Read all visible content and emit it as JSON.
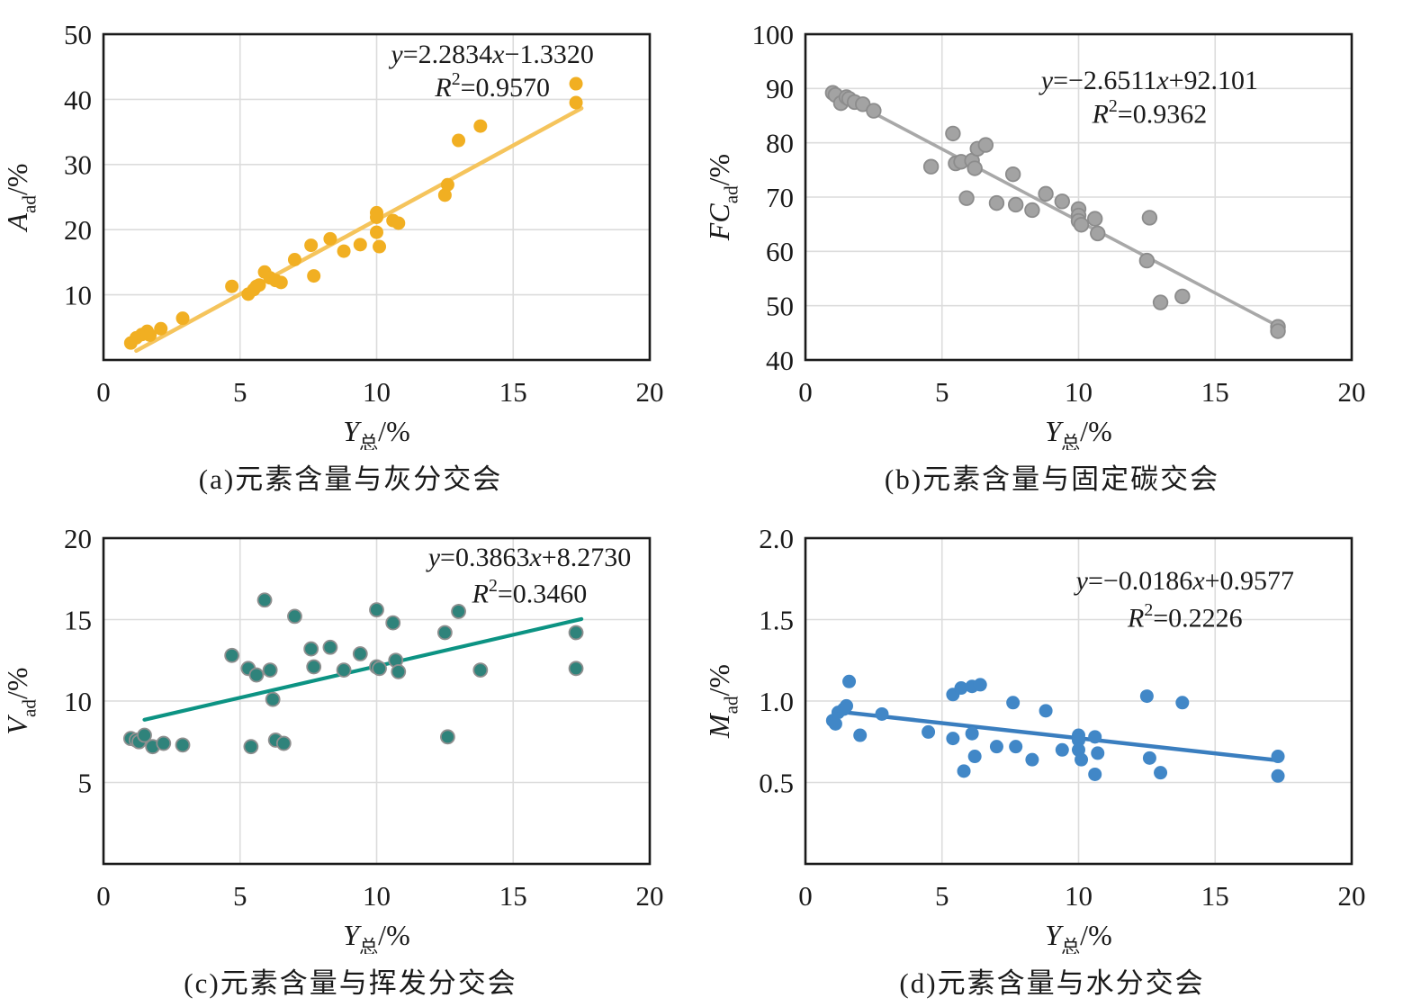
{
  "figure_name": "coal-quality-crossplots",
  "chart_data": [
    {
      "type": "scatter",
      "panel": "a",
      "caption": "(a)元素含量与灰分交会",
      "xlim": [
        0,
        20
      ],
      "ylim": [
        0,
        50
      ],
      "xticks": [
        [
          0,
          "0"
        ],
        [
          5,
          "5"
        ],
        [
          10,
          "10"
        ],
        [
          15,
          "15"
        ],
        [
          20,
          "20"
        ]
      ],
      "yticks": [
        [
          10,
          "10"
        ],
        [
          20,
          "20"
        ],
        [
          30,
          "30"
        ],
        [
          40,
          "40"
        ],
        [
          50,
          "50"
        ]
      ],
      "xlabel_parts": [
        {
          "t": "Y",
          "i": true
        },
        {
          "t": "总",
          "sub": true
        },
        {
          "t": "/%"
        }
      ],
      "ylabel_parts": [
        {
          "t": "A",
          "i": true
        },
        {
          "t": "ad",
          "sub": true
        },
        {
          "t": "/%"
        }
      ],
      "eq_parts": [
        {
          "t": "y",
          "i": true
        },
        {
          "t": "=2.2834"
        },
        {
          "t": "x",
          "i": true
        },
        {
          "t": "−1.3320"
        }
      ],
      "r2_parts": [
        {
          "t": "R",
          "i": true
        },
        {
          "t": "2",
          "sup": true
        },
        {
          "t": "=0.9570"
        }
      ],
      "equation_text": "y=2.2834x−1.3320",
      "r2_text": "R²=0.9570",
      "annotation": {
        "x_frac": 0.712,
        "y1_frac": 0.088,
        "y2_frac": 0.19
      },
      "point_color": "#F1AF22",
      "point_stroke": "",
      "line_color": "#F5C45C",
      "line_width": 4.5,
      "point_radius": 7.5,
      "fit": {
        "slope": 2.2834,
        "intercept": -1.332,
        "x1": 1.2,
        "x2": 17.5
      },
      "points": [
        [
          1.0,
          2.6
        ],
        [
          1.2,
          3.4
        ],
        [
          1.4,
          3.9
        ],
        [
          1.6,
          4.4
        ],
        [
          1.7,
          3.8
        ],
        [
          2.1,
          4.8
        ],
        [
          2.9,
          6.4
        ],
        [
          4.7,
          11.3
        ],
        [
          5.3,
          10.1
        ],
        [
          5.5,
          10.8
        ],
        [
          5.6,
          11.3
        ],
        [
          5.7,
          11.5
        ],
        [
          5.9,
          13.5
        ],
        [
          6.1,
          12.6
        ],
        [
          6.3,
          12.2
        ],
        [
          6.5,
          11.9
        ],
        [
          7.0,
          15.4
        ],
        [
          7.6,
          17.6
        ],
        [
          7.7,
          12.9
        ],
        [
          8.3,
          18.6
        ],
        [
          8.8,
          16.7
        ],
        [
          9.4,
          17.7
        ],
        [
          10.0,
          22.6
        ],
        [
          10.0,
          21.9
        ],
        [
          10.0,
          19.6
        ],
        [
          10.1,
          17.4
        ],
        [
          10.6,
          21.4
        ],
        [
          10.8,
          21.0
        ],
        [
          12.5,
          25.3
        ],
        [
          12.6,
          26.9
        ],
        [
          13.0,
          33.7
        ],
        [
          13.8,
          35.9
        ],
        [
          17.3,
          42.4
        ],
        [
          17.3,
          39.5
        ]
      ]
    },
    {
      "type": "scatter",
      "panel": "b",
      "caption": "(b)元素含量与固定碳交会",
      "xlim": [
        0,
        20
      ],
      "ylim": [
        40,
        100
      ],
      "xticks": [
        [
          0,
          "0"
        ],
        [
          5,
          "5"
        ],
        [
          10,
          "10"
        ],
        [
          15,
          "15"
        ],
        [
          20,
          "20"
        ]
      ],
      "yticks": [
        [
          40,
          "40"
        ],
        [
          50,
          "50"
        ],
        [
          60,
          "60"
        ],
        [
          70,
          "70"
        ],
        [
          80,
          "80"
        ],
        [
          90,
          "90"
        ],
        [
          100,
          "100"
        ]
      ],
      "xlabel_parts": [
        {
          "t": "Y",
          "i": true
        },
        {
          "t": "总",
          "sub": true
        },
        {
          "t": "/%"
        }
      ],
      "ylabel_parts": [
        {
          "t": "FC",
          "i": true
        },
        {
          "t": "ad",
          "sub": true
        },
        {
          "t": "/%"
        }
      ],
      "eq_parts": [
        {
          "t": "y",
          "i": true
        },
        {
          "t": "=−2.6511"
        },
        {
          "t": "x",
          "i": true
        },
        {
          "t": "+92.101"
        }
      ],
      "r2_parts": [
        {
          "t": "R",
          "i": true
        },
        {
          "t": "2",
          "sup": true
        },
        {
          "t": "=0.9362"
        }
      ],
      "equation_text": "y=−2.6511x+92.101",
      "r2_text": "R²=0.9362",
      "annotation": {
        "x_frac": 0.63,
        "y1_frac": 0.168,
        "y2_frac": 0.272
      },
      "point_color": "#A3A3A3",
      "point_stroke": "#8C8C8C",
      "line_color": "#A8A8A8",
      "line_width": 3.6,
      "point_radius": 7.8,
      "fit": {
        "slope": -2.6511,
        "intercept": 92.101,
        "x1": 1.0,
        "x2": 17.4
      },
      "points": [
        [
          1.0,
          89.2
        ],
        [
          1.1,
          88.8
        ],
        [
          1.3,
          87.3
        ],
        [
          1.5,
          88.4
        ],
        [
          1.6,
          88.1
        ],
        [
          1.8,
          87.5
        ],
        [
          2.1,
          87.1
        ],
        [
          2.5,
          85.9
        ],
        [
          4.6,
          75.6
        ],
        [
          5.4,
          81.7
        ],
        [
          5.5,
          76.2
        ],
        [
          5.7,
          76.5
        ],
        [
          5.9,
          69.8
        ],
        [
          6.1,
          76.7
        ],
        [
          6.2,
          75.3
        ],
        [
          6.3,
          78.9
        ],
        [
          6.6,
          79.6
        ],
        [
          7.0,
          68.9
        ],
        [
          7.6,
          74.2
        ],
        [
          7.7,
          68.6
        ],
        [
          8.3,
          67.6
        ],
        [
          8.8,
          70.6
        ],
        [
          9.4,
          69.2
        ],
        [
          10.0,
          67.8
        ],
        [
          10.0,
          66.6
        ],
        [
          10.0,
          65.6
        ],
        [
          10.1,
          64.9
        ],
        [
          10.6,
          66.0
        ],
        [
          10.7,
          63.3
        ],
        [
          12.5,
          58.3
        ],
        [
          12.6,
          66.2
        ],
        [
          13.0,
          50.6
        ],
        [
          13.8,
          51.7
        ],
        [
          17.3,
          46.1
        ],
        [
          17.3,
          45.3
        ]
      ]
    },
    {
      "type": "scatter",
      "panel": "c",
      "caption": "(c)元素含量与挥发分交会",
      "xlim": [
        0,
        20
      ],
      "ylim": [
        0,
        20
      ],
      "xticks": [
        [
          0,
          "0"
        ],
        [
          5,
          "5"
        ],
        [
          10,
          "10"
        ],
        [
          15,
          "15"
        ],
        [
          20,
          "20"
        ]
      ],
      "yticks": [
        [
          5,
          "5"
        ],
        [
          10,
          "10"
        ],
        [
          15,
          "15"
        ],
        [
          20,
          "20"
        ]
      ],
      "xlabel_parts": [
        {
          "t": "Y",
          "i": true
        },
        {
          "t": "总",
          "sub": true
        },
        {
          "t": "/%"
        }
      ],
      "ylabel_parts": [
        {
          "t": "V",
          "i": true
        },
        {
          "t": "ad",
          "sub": true
        },
        {
          "t": "/%"
        }
      ],
      "eq_parts": [
        {
          "t": "y",
          "i": true
        },
        {
          "t": "=0.3863"
        },
        {
          "t": "x",
          "i": true
        },
        {
          "t": "+8.2730"
        }
      ],
      "r2_parts": [
        {
          "t": "R",
          "i": true
        },
        {
          "t": "2",
          "sup": true
        },
        {
          "t": "=0.3460"
        }
      ],
      "equation_text": "y=0.3863x+8.2730",
      "r2_text": "R²=0.3460",
      "annotation": {
        "x_frac": 0.78,
        "y1_frac": 0.085,
        "y2_frac": 0.198
      },
      "point_color": "#2F837B",
      "point_stroke": "#8F8F8F",
      "line_color": "#0C9383",
      "line_width": 4.2,
      "point_radius": 7.5,
      "fit": {
        "slope": 0.3863,
        "intercept": 8.273,
        "x1": 1.5,
        "x2": 17.5
      },
      "points": [
        [
          1.0,
          7.7
        ],
        [
          1.2,
          7.6
        ],
        [
          1.3,
          7.5
        ],
        [
          1.5,
          7.9
        ],
        [
          1.8,
          7.2
        ],
        [
          2.2,
          7.4
        ],
        [
          2.9,
          7.3
        ],
        [
          4.7,
          12.8
        ],
        [
          5.3,
          12.0
        ],
        [
          5.4,
          7.2
        ],
        [
          5.6,
          11.6
        ],
        [
          5.9,
          16.2
        ],
        [
          6.1,
          11.9
        ],
        [
          6.2,
          10.1
        ],
        [
          6.3,
          7.6
        ],
        [
          6.6,
          7.4
        ],
        [
          7.0,
          15.2
        ],
        [
          7.6,
          13.2
        ],
        [
          7.7,
          12.1
        ],
        [
          8.3,
          13.3
        ],
        [
          8.8,
          11.9
        ],
        [
          9.4,
          12.9
        ],
        [
          10.0,
          15.6
        ],
        [
          10.0,
          12.1
        ],
        [
          10.1,
          12.0
        ],
        [
          10.6,
          14.8
        ],
        [
          10.7,
          12.5
        ],
        [
          10.8,
          11.8
        ],
        [
          12.5,
          14.2
        ],
        [
          12.6,
          7.8
        ],
        [
          13.0,
          15.5
        ],
        [
          13.8,
          11.9
        ],
        [
          17.3,
          14.2
        ],
        [
          17.3,
          12.0
        ]
      ]
    },
    {
      "type": "scatter",
      "panel": "d",
      "caption": "(d)元素含量与水分交会",
      "xlim": [
        0,
        20
      ],
      "ylim": [
        0,
        2.0
      ],
      "xticks": [
        [
          0,
          "0"
        ],
        [
          5,
          "5"
        ],
        [
          10,
          "10"
        ],
        [
          15,
          "15"
        ],
        [
          20,
          "20"
        ]
      ],
      "yticks": [
        [
          0.5,
          "0.5"
        ],
        [
          1.0,
          "1.0"
        ],
        [
          1.5,
          "1.5"
        ],
        [
          2.0,
          "2.0"
        ]
      ],
      "xlabel_parts": [
        {
          "t": "Y",
          "i": true
        },
        {
          "t": "总",
          "sub": true
        },
        {
          "t": "/%"
        }
      ],
      "ylabel_parts": [
        {
          "t": "M",
          "i": true
        },
        {
          "t": "ad",
          "sub": true
        },
        {
          "t": "/%"
        }
      ],
      "eq_parts": [
        {
          "t": "y",
          "i": true
        },
        {
          "t": "=−0.0186"
        },
        {
          "t": "x",
          "i": true
        },
        {
          "t": "+0.9577"
        }
      ],
      "r2_parts": [
        {
          "t": "R",
          "i": true
        },
        {
          "t": "2",
          "sup": true
        },
        {
          "t": "=0.2226"
        }
      ],
      "equation_text": "y=−0.0186x+0.9577",
      "r2_text": "R²=0.2226",
      "annotation": {
        "x_frac": 0.695,
        "y1_frac": 0.158,
        "y2_frac": 0.272
      },
      "point_color": "#4187C7",
      "point_stroke": "",
      "line_color": "#3A7EBF",
      "line_width": 4.5,
      "point_radius": 7.5,
      "fit": {
        "slope": -0.0186,
        "intercept": 0.9577,
        "x1": 1.2,
        "x2": 17.3
      },
      "points": [
        [
          1.0,
          0.88
        ],
        [
          1.1,
          0.86
        ],
        [
          1.2,
          0.93
        ],
        [
          1.4,
          0.95
        ],
        [
          1.5,
          0.97
        ],
        [
          1.6,
          1.12
        ],
        [
          2.0,
          0.79
        ],
        [
          2.8,
          0.92
        ],
        [
          4.5,
          0.81
        ],
        [
          5.4,
          1.04
        ],
        [
          5.4,
          0.77
        ],
        [
          5.7,
          1.08
        ],
        [
          5.8,
          0.57
        ],
        [
          6.1,
          1.09
        ],
        [
          6.1,
          0.8
        ],
        [
          6.2,
          0.66
        ],
        [
          6.4,
          1.1
        ],
        [
          7.0,
          0.72
        ],
        [
          7.6,
          0.99
        ],
        [
          7.7,
          0.72
        ],
        [
          8.3,
          0.64
        ],
        [
          8.8,
          0.94
        ],
        [
          9.4,
          0.7
        ],
        [
          10.0,
          0.79
        ],
        [
          10.0,
          0.76
        ],
        [
          10.0,
          0.7
        ],
        [
          10.1,
          0.64
        ],
        [
          10.6,
          0.78
        ],
        [
          10.6,
          0.55
        ],
        [
          10.7,
          0.68
        ],
        [
          12.5,
          1.03
        ],
        [
          12.6,
          0.65
        ],
        [
          13.0,
          0.56
        ],
        [
          13.8,
          0.99
        ],
        [
          17.3,
          0.66
        ],
        [
          17.3,
          0.54
        ]
      ]
    }
  ]
}
